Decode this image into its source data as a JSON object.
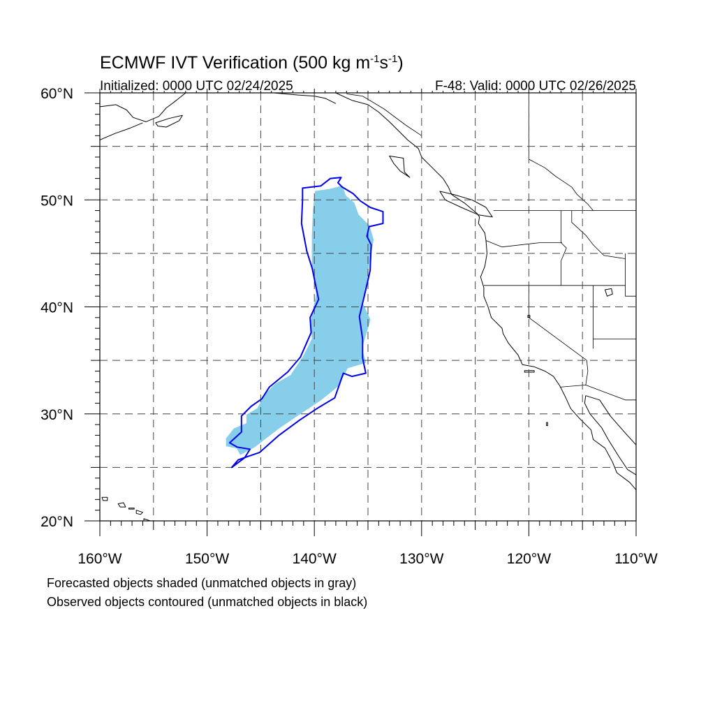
{
  "title": {
    "main": "ECMWF IVT Verification (500 kg m",
    "sup1": "-1",
    "mid": "s",
    "sup2": "-1",
    "end": ")"
  },
  "subtitle_left": "Initialized: 0000 UTC 02/24/2025",
  "subtitle_right": "F-48: Valid: 0000 UTC 02/26/2025",
  "map": {
    "projection": "cylindrical-equidistant",
    "lon_range": [
      -160,
      -110
    ],
    "lat_range": [
      20,
      60
    ],
    "gridline_style": "dashed",
    "gridline_step_deg": 5
  },
  "axes": {
    "lat_labels": [
      "20°N",
      "30°N",
      "40°N",
      "50°N",
      "60°N"
    ],
    "lon_labels": [
      "160°W",
      "150°W",
      "140°W",
      "130°W",
      "120°W",
      "110°W"
    ]
  },
  "legend_notes": [
    "Forecasted objects shaded (unmatched objects in gray)",
    "Observed objects contoured (unmatched objects in black)"
  ],
  "colors": {
    "forecast_fill": "#87ceea",
    "observed_contour": "#0000ee",
    "coastline": "#000000",
    "grid": "#444444"
  },
  "forecast_object": {
    "matched": true,
    "polygon_lonlat": [
      [
        -139.9,
        50.8
      ],
      [
        -138.5,
        51.0
      ],
      [
        -137.4,
        51.3
      ],
      [
        -137.1,
        50.4
      ],
      [
        -136.3,
        49.7
      ],
      [
        -135.9,
        48.6
      ],
      [
        -134.9,
        47.6
      ],
      [
        -134.5,
        46.3
      ],
      [
        -134.9,
        44.0
      ],
      [
        -135.2,
        41.7
      ],
      [
        -135.5,
        40.3
      ],
      [
        -134.8,
        38.8
      ],
      [
        -135.6,
        36.1
      ],
      [
        -135.2,
        34.8
      ],
      [
        -136.9,
        34.3
      ],
      [
        -137.8,
        32.6
      ],
      [
        -139.4,
        31.3
      ],
      [
        -141.5,
        29.9
      ],
      [
        -143.4,
        28.6
      ],
      [
        -145.6,
        26.9
      ],
      [
        -146.9,
        26.2
      ],
      [
        -147.2,
        26.8
      ],
      [
        -148.2,
        27.0
      ],
      [
        -148.2,
        27.7
      ],
      [
        -147.5,
        28.6
      ],
      [
        -146.3,
        29.1
      ],
      [
        -146.3,
        29.9
      ],
      [
        -145.3,
        30.5
      ],
      [
        -144.6,
        31.8
      ],
      [
        -143.6,
        32.8
      ],
      [
        -142.2,
        33.6
      ],
      [
        -141.0,
        35.4
      ],
      [
        -140.2,
        37.0
      ],
      [
        -140.3,
        38.6
      ],
      [
        -140.1,
        39.7
      ],
      [
        -139.8,
        41.2
      ],
      [
        -140.2,
        43.7
      ],
      [
        -140.2,
        46.7
      ],
      [
        -140.1,
        49.1
      ]
    ]
  },
  "observed_object": {
    "matched": true,
    "contour_lonlat": [
      [
        -141.1,
        51.1
      ],
      [
        -139.4,
        51.3
      ],
      [
        -138.5,
        52.0
      ],
      [
        -137.5,
        52.1
      ],
      [
        -137.8,
        51.6
      ],
      [
        -137.4,
        51.2
      ],
      [
        -136.4,
        50.6
      ],
      [
        -135.7,
        49.9
      ],
      [
        -134.8,
        49.3
      ],
      [
        -133.6,
        48.9
      ],
      [
        -133.6,
        47.8
      ],
      [
        -134.9,
        47.5
      ],
      [
        -135.1,
        46.6
      ],
      [
        -134.7,
        45.8
      ],
      [
        -134.8,
        43.4
      ],
      [
        -135.3,
        41.2
      ],
      [
        -135.8,
        39.1
      ],
      [
        -135.5,
        37.0
      ],
      [
        -135.5,
        35.2
      ],
      [
        -135.2,
        33.8
      ],
      [
        -136.5,
        33.5
      ],
      [
        -137.3,
        33.8
      ],
      [
        -138.1,
        31.5
      ],
      [
        -139.6,
        30.6
      ],
      [
        -141.4,
        29.4
      ],
      [
        -143.3,
        28.0
      ],
      [
        -145.1,
        26.4
      ],
      [
        -147.1,
        25.7
      ],
      [
        -147.7,
        25.0
      ],
      [
        -146.5,
        25.9
      ],
      [
        -146.0,
        26.7
      ],
      [
        -147.2,
        26.9
      ],
      [
        -147.9,
        27.3
      ],
      [
        -146.8,
        28.3
      ],
      [
        -146.8,
        29.8
      ],
      [
        -145.9,
        30.7
      ],
      [
        -144.9,
        31.4
      ],
      [
        -144.2,
        32.5
      ],
      [
        -142.5,
        33.9
      ],
      [
        -141.3,
        35.3
      ],
      [
        -140.3,
        37.6
      ],
      [
        -140.4,
        39.0
      ],
      [
        -139.6,
        40.7
      ],
      [
        -140.2,
        43.6
      ],
      [
        -140.7,
        45.2
      ],
      [
        -141.2,
        47.8
      ],
      [
        -141.1,
        50.0
      ]
    ]
  },
  "coastlines": [
    {
      "name": "north-america-pacific-coast",
      "lonlat": [
        [
          -138.0,
          60.0
        ],
        [
          -136.5,
          59.3
        ],
        [
          -135.0,
          58.9
        ],
        [
          -134.0,
          58.2
        ],
        [
          -133.0,
          57.3
        ],
        [
          -132.2,
          56.5
        ],
        [
          -131.3,
          55.6
        ],
        [
          -130.3,
          54.8
        ],
        [
          -130.0,
          54.0
        ],
        [
          -129.0,
          53.0
        ],
        [
          -128.0,
          52.0
        ],
        [
          -127.5,
          51.2
        ],
        [
          -127.2,
          50.5
        ],
        [
          -126.0,
          49.7
        ],
        [
          -124.8,
          48.7
        ],
        [
          -124.6,
          48.4
        ],
        [
          -124.7,
          47.8
        ],
        [
          -124.1,
          46.9
        ],
        [
          -124.0,
          46.2
        ],
        [
          -123.9,
          45.0
        ],
        [
          -124.1,
          43.8
        ],
        [
          -124.5,
          42.8
        ],
        [
          -124.2,
          41.8
        ],
        [
          -124.2,
          41.0
        ],
        [
          -123.8,
          40.0
        ],
        [
          -123.5,
          39.0
        ],
        [
          -122.5,
          38.0
        ],
        [
          -122.4,
          37.5
        ],
        [
          -121.9,
          36.6
        ],
        [
          -121.0,
          35.5
        ],
        [
          -120.6,
          34.6
        ],
        [
          -119.5,
          34.4
        ],
        [
          -118.5,
          34.0
        ],
        [
          -117.7,
          33.5
        ],
        [
          -117.1,
          32.6
        ],
        [
          -116.6,
          31.6
        ],
        [
          -116.1,
          30.5
        ],
        [
          -115.3,
          29.6
        ],
        [
          -114.2,
          28.5
        ],
        [
          -114.0,
          27.6
        ],
        [
          -112.9,
          26.8
        ],
        [
          -112.2,
          25.5
        ],
        [
          -111.8,
          24.5
        ],
        [
          -110.6,
          23.6
        ],
        [
          -110.0,
          22.9
        ]
      ]
    },
    {
      "name": "baja-gulf-coast",
      "lonlat": [
        [
          -110.0,
          24.3
        ],
        [
          -110.8,
          24.8
        ],
        [
          -111.6,
          26.0
        ],
        [
          -112.6,
          27.6
        ],
        [
          -113.2,
          28.7
        ],
        [
          -114.3,
          30.0
        ],
        [
          -114.8,
          31.0
        ],
        [
          -114.7,
          31.7
        ]
      ]
    },
    {
      "name": "mexico-mainland-gulf-coast",
      "lonlat": [
        [
          -114.7,
          31.7
        ],
        [
          -113.4,
          31.3
        ],
        [
          -112.4,
          29.8
        ],
        [
          -111.0,
          28.2
        ],
        [
          -110.0,
          27.1
        ]
      ]
    },
    {
      "name": "alaska-peninsula",
      "lonlat": [
        [
          -160.0,
          58.7
        ],
        [
          -158.5,
          58.9
        ],
        [
          -157.5,
          58.4
        ],
        [
          -156.9,
          57.7
        ],
        [
          -155.7,
          57.3
        ],
        [
          -154.5,
          57.8
        ],
        [
          -153.8,
          58.6
        ],
        [
          -153.0,
          59.2
        ],
        [
          -152.0,
          60.0
        ]
      ]
    },
    {
      "name": "alaska-peninsula-south",
      "lonlat": [
        [
          -160.0,
          55.6
        ],
        [
          -158.6,
          56.2
        ],
        [
          -157.2,
          56.7
        ],
        [
          -156.0,
          57.2
        ]
      ]
    },
    {
      "name": "gulf-of-alaska-coast",
      "lonlat": [
        [
          -145.0,
          60.0
        ],
        [
          -143.8,
          60.0
        ],
        [
          -141.5,
          59.8
        ],
        [
          -140.0,
          59.7
        ],
        [
          -139.0,
          59.5
        ],
        [
          -138.0,
          59.0
        ]
      ]
    }
  ],
  "islands": [
    {
      "name": "kodiak-island",
      "lonlat": [
        [
          -154.8,
          57.2
        ],
        [
          -153.6,
          57.6
        ],
        [
          -152.3,
          57.9
        ],
        [
          -152.6,
          57.4
        ],
        [
          -153.8,
          56.8
        ],
        [
          -154.6,
          56.9
        ]
      ]
    },
    {
      "name": "haida-gwaii",
      "lonlat": [
        [
          -133.0,
          54.1
        ],
        [
          -131.7,
          53.9
        ],
        [
          -131.6,
          52.6
        ],
        [
          -131.1,
          52.1
        ],
        [
          -132.0,
          52.7
        ],
        [
          -132.6,
          53.4
        ]
      ]
    },
    {
      "name": "vancouver-island",
      "lonlat": [
        [
          -128.3,
          50.8
        ],
        [
          -127.0,
          50.5
        ],
        [
          -125.3,
          50.0
        ],
        [
          -124.0,
          49.3
        ],
        [
          -123.4,
          48.4
        ],
        [
          -124.7,
          48.6
        ],
        [
          -126.3,
          49.3
        ],
        [
          -127.8,
          50.0
        ]
      ]
    },
    {
      "name": "hawaii-big-island",
      "lonlat": [
        [
          -155.9,
          20.2
        ],
        [
          -155.0,
          19.9
        ],
        [
          -154.9,
          19.5
        ],
        [
          -155.6,
          19.0
        ],
        [
          -155.9,
          19.4
        ]
      ]
    },
    {
      "name": "maui",
      "lonlat": [
        [
          -156.6,
          21.0
        ],
        [
          -156.0,
          20.8
        ],
        [
          -156.2,
          20.6
        ],
        [
          -156.6,
          20.7
        ]
      ]
    },
    {
      "name": "molokai",
      "lonlat": [
        [
          -157.3,
          21.2
        ],
        [
          -156.8,
          21.2
        ],
        [
          -156.8,
          21.1
        ],
        [
          -157.3,
          21.1
        ]
      ]
    },
    {
      "name": "oahu",
      "lonlat": [
        [
          -158.3,
          21.6
        ],
        [
          -157.8,
          21.7
        ],
        [
          -157.6,
          21.3
        ],
        [
          -158.1,
          21.3
        ]
      ]
    },
    {
      "name": "kauai",
      "lonlat": [
        [
          -159.8,
          22.2
        ],
        [
          -159.3,
          22.2
        ],
        [
          -159.3,
          21.9
        ],
        [
          -159.7,
          21.9
        ]
      ]
    },
    {
      "name": "channel-islands",
      "lonlat": [
        [
          -120.4,
          34.05
        ],
        [
          -119.5,
          34.05
        ],
        [
          -119.5,
          33.9
        ],
        [
          -120.4,
          33.9
        ]
      ]
    },
    {
      "name": "guadalupe-island",
      "lonlat": [
        [
          -118.35,
          29.2
        ],
        [
          -118.25,
          29.2
        ],
        [
          -118.25,
          28.9
        ],
        [
          -118.35,
          28.9
        ]
      ]
    }
  ],
  "borders": [
    {
      "name": "canada-us-border",
      "lonlat": [
        [
          -123.3,
          49.0
        ],
        [
          -118.0,
          49.0
        ],
        [
          -114.0,
          49.0
        ],
        [
          -110.0,
          49.0
        ]
      ]
    },
    {
      "name": "canada-alaska-border",
      "lonlat": [
        [
          -130.0,
          56.0
        ],
        [
          -131.5,
          57.0
        ],
        [
          -133.5,
          58.5
        ],
        [
          -135.5,
          59.7
        ],
        [
          -137.0,
          59.9
        ]
      ]
    },
    {
      "name": "bc-alberta-border",
      "lonlat": [
        [
          -120.0,
          60.0
        ],
        [
          -120.0,
          53.8
        ],
        [
          -118.5,
          53.0
        ],
        [
          -117.5,
          52.2
        ],
        [
          -116.0,
          51.2
        ],
        [
          -115.5,
          50.5
        ],
        [
          -114.5,
          49.6
        ],
        [
          -114.0,
          49.0
        ]
      ]
    },
    {
      "name": "us-mexico-border",
      "lonlat": [
        [
          -117.1,
          32.5
        ],
        [
          -114.7,
          32.7
        ],
        [
          -111.0,
          31.3
        ],
        [
          -110.0,
          31.3
        ]
      ]
    },
    {
      "name": "washington-oregon",
      "lonlat": [
        [
          -124.0,
          46.2
        ],
        [
          -122.5,
          45.6
        ],
        [
          -119.0,
          46.0
        ],
        [
          -116.9,
          46.0
        ]
      ]
    },
    {
      "name": "idaho-west",
      "lonlat": [
        [
          -117.0,
          49.0
        ],
        [
          -117.0,
          46.0
        ],
        [
          -116.5,
          45.5
        ],
        [
          -117.0,
          44.3
        ],
        [
          -117.0,
          42.0
        ]
      ]
    },
    {
      "name": "idaho-montana",
      "lonlat": [
        [
          -116.0,
          49.0
        ],
        [
          -116.0,
          47.9
        ],
        [
          -114.7,
          46.7
        ],
        [
          -114.0,
          45.8
        ],
        [
          -113.0,
          44.8
        ],
        [
          -111.0,
          44.5
        ]
      ]
    },
    {
      "name": "oregon-california-nevada-idaho",
      "lonlat": [
        [
          -124.2,
          42.0
        ],
        [
          -120.0,
          42.0
        ],
        [
          -117.0,
          42.0
        ],
        [
          -111.0,
          42.0
        ]
      ]
    },
    {
      "name": "california-nevada",
      "lonlat": [
        [
          -120.0,
          42.0
        ],
        [
          -120.0,
          39.0
        ],
        [
          -114.6,
          35.0
        ]
      ]
    },
    {
      "name": "california-arizona",
      "lonlat": [
        [
          -114.6,
          35.0
        ],
        [
          -114.5,
          34.0
        ],
        [
          -114.7,
          32.7
        ]
      ]
    },
    {
      "name": "nevada-utah",
      "lonlat": [
        [
          -114.0,
          42.0
        ],
        [
          -114.0,
          37.0
        ],
        [
          -114.0,
          36.1
        ]
      ]
    },
    {
      "name": "utah-arizona",
      "lonlat": [
        [
          -114.0,
          37.0
        ],
        [
          -110.0,
          37.0
        ]
      ]
    },
    {
      "name": "wyoming-west",
      "lonlat": [
        [
          -111.0,
          45.0
        ],
        [
          -111.0,
          41.0
        ],
        [
          -110.0,
          41.0
        ]
      ]
    }
  ],
  "lakes": [
    {
      "name": "great-salt-lake",
      "lonlat": [
        [
          -112.9,
          41.6
        ],
        [
          -112.3,
          41.7
        ],
        [
          -112.2,
          41.2
        ],
        [
          -112.7,
          41.0
        ]
      ]
    },
    {
      "name": "lake-tahoe",
      "lonlat": [
        [
          -120.1,
          39.2
        ],
        [
          -119.9,
          39.2
        ],
        [
          -119.9,
          39.0
        ],
        [
          -120.1,
          39.0
        ]
      ]
    }
  ]
}
